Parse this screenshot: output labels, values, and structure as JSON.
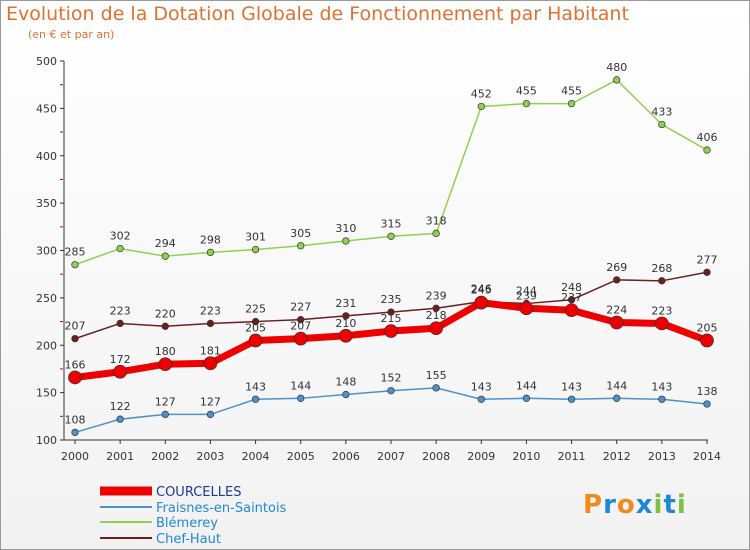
{
  "title": "Evolution de la Dotation Globale de Fonctionnement par Habitant",
  "subtitle": "(en € et par an)",
  "logo": {
    "text": "Proxiti",
    "colors": [
      "#f08a1c",
      "#1e88d6",
      "#f08a1c",
      "#1e88d6",
      "#7cc242",
      "#1e88d6",
      "#7cc242"
    ]
  },
  "chart_data": {
    "type": "line",
    "title": "Evolution de la Dotation Globale de Fonctionnement par Habitant",
    "subtitle": "(en € et par an)",
    "x": [
      2000,
      2001,
      2002,
      2003,
      2004,
      2005,
      2006,
      2007,
      2008,
      2009,
      2010,
      2011,
      2012,
      2013,
      2014
    ],
    "ylim": [
      100,
      500
    ],
    "yticks": [
      100,
      150,
      200,
      250,
      300,
      350,
      400,
      450,
      500
    ],
    "grid": false,
    "legend": "bottom-left",
    "series": [
      {
        "name": "COURCELLES",
        "color": "#ee0000",
        "values": [
          166,
          172,
          180,
          181,
          205,
          207,
          210,
          215,
          218,
          245,
          239,
          237,
          224,
          223,
          205
        ]
      },
      {
        "name": "Fraisnes-en-Saintois",
        "color": "#4d92cb",
        "values": [
          108,
          122,
          127,
          127,
          143,
          144,
          148,
          152,
          155,
          143,
          144,
          143,
          144,
          143,
          138
        ]
      },
      {
        "name": "Blémerey",
        "color": "#8fd14f",
        "values": [
          285,
          302,
          294,
          298,
          301,
          305,
          310,
          315,
          318,
          452,
          455,
          455,
          480,
          433,
          406
        ]
      },
      {
        "name": "Chef-Haut",
        "color": "#6b1f1f",
        "values": [
          207,
          223,
          220,
          223,
          225,
          227,
          231,
          235,
          239,
          246,
          244,
          248,
          269,
          268,
          277
        ]
      }
    ]
  }
}
